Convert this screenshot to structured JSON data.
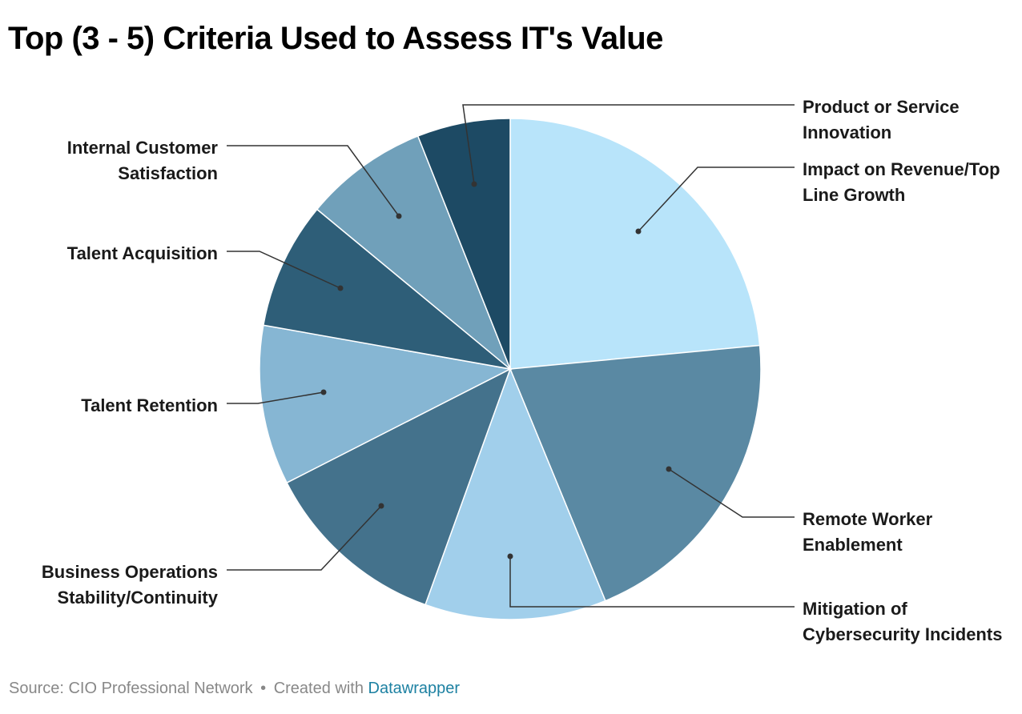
{
  "title": "Top (3 - 5) Criteria Used to Assess IT's Value",
  "footer": {
    "source": "Source: CIO Professional Network",
    "separator": "•",
    "created_with": "Created with",
    "link": "Datawrapper"
  },
  "chart_data": {
    "type": "pie",
    "start_angle_deg": 0,
    "direction": "clockwise",
    "slices": [
      {
        "label": "Impact on Revenue/Top Line Growth",
        "lines": [
          "Impact on Revenue/Top",
          "Line Growth"
        ],
        "value": 23.5,
        "color": "#b8e4fa",
        "side": "right"
      },
      {
        "label": "Remote Worker Enablement",
        "lines": [
          "Remote Worker",
          "Enablement"
        ],
        "value": 20.3,
        "color": "#5a89a3",
        "side": "right"
      },
      {
        "label": "Mitigation of Cybersecurity Incidents",
        "lines": [
          "Mitigation of",
          "Cybersecurity Incidents"
        ],
        "value": 11.7,
        "color": "#a1cfeb",
        "side": "right"
      },
      {
        "label": "Business Operations Stability/Continuity",
        "lines": [
          "Business Operations",
          "Stability/Continuity"
        ],
        "value": 12.0,
        "color": "#44728c",
        "side": "left"
      },
      {
        "label": "Talent Retention",
        "lines": [
          "Talent Retention"
        ],
        "value": 10.3,
        "color": "#86b6d3",
        "side": "left"
      },
      {
        "label": "Talent Acquisition",
        "lines": [
          "Talent Acquisition"
        ],
        "value": 8.2,
        "color": "#2e5e78",
        "side": "left"
      },
      {
        "label": "Internal Customer Satisfaction",
        "lines": [
          "Internal Customer",
          "Satisfaction"
        ],
        "value": 8.0,
        "color": "#70a0ba",
        "side": "left"
      },
      {
        "label": "Product or Service Innovation",
        "lines": [
          "Product or Service",
          "Innovation"
        ],
        "value": 6.0,
        "color": "#1d4a64",
        "side": "right"
      }
    ]
  }
}
